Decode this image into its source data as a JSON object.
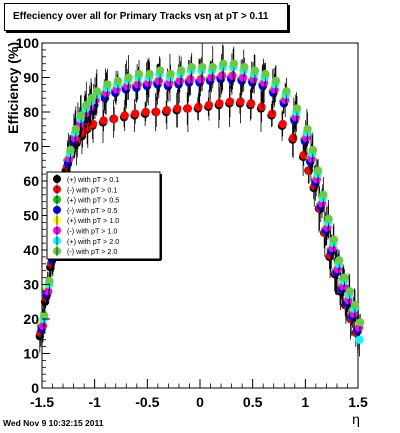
{
  "title": "Effeciency over all for Primary Tracks vsη at pT > 0.11",
  "footer": "Wed Nov  9 10:32:15 2011",
  "chart_data": {
    "type": "scatter",
    "xlabel": "η",
    "ylabel": "Efficiency (%)",
    "xlim": [
      -1.5,
      1.5
    ],
    "ylim": [
      0,
      100
    ],
    "x_ticks": [
      "-1.5",
      "-1",
      "-0.5",
      "0",
      "0.5",
      "1",
      "1.5"
    ],
    "y_ticks": [
      "0",
      "10",
      "20",
      "30",
      "40",
      "50",
      "60",
      "70",
      "80",
      "90",
      "100"
    ],
    "legend_position": "center-left",
    "grid": false,
    "x": [
      -1.5,
      -1.45,
      -1.4,
      -1.35,
      -1.3,
      -1.25,
      -1.2,
      -1.15,
      -1.1,
      -1.05,
      -1.0,
      -0.9,
      -0.8,
      -0.7,
      -0.6,
      -0.5,
      -0.4,
      -0.3,
      -0.2,
      -0.1,
      0.0,
      0.1,
      0.2,
      0.3,
      0.4,
      0.5,
      0.6,
      0.7,
      0.8,
      0.9,
      1.0,
      1.05,
      1.1,
      1.15,
      1.2,
      1.25,
      1.3,
      1.35,
      1.4,
      1.45,
      1.5
    ],
    "series": [
      {
        "name": "(+) with pT > 0.1",
        "color": "#000000",
        "values": [
          15,
          25,
          35,
          45,
          55,
          63,
          68,
          71,
          73,
          75,
          76,
          77,
          78,
          78.5,
          79,
          79.5,
          80,
          80,
          80.5,
          81,
          81,
          81.5,
          82,
          82.5,
          82.5,
          82,
          81,
          79,
          76,
          72,
          67,
          63,
          58,
          52,
          45,
          38,
          33,
          28,
          24,
          20,
          16
        ]
      },
      {
        "name": "(-) with pT > 0.1",
        "color": "#ff0000",
        "values": [
          16,
          26,
          36,
          46,
          56,
          64,
          69,
          72,
          74,
          75.5,
          76.5,
          77.5,
          78,
          79,
          79.5,
          80,
          80,
          80.5,
          81,
          81,
          81.5,
          82,
          82.5,
          83,
          83,
          82.5,
          81.5,
          79.5,
          76.5,
          72.5,
          67.5,
          63,
          58.5,
          52,
          45,
          38.5,
          33.5,
          28.5,
          24,
          20,
          16
        ]
      },
      {
        "name": "(+) with pT > 0.5",
        "color": "#00cc00",
        "values": [
          18,
          28,
          38,
          48,
          58,
          66,
          72,
          76,
          79,
          81,
          83,
          85,
          86,
          87,
          87.5,
          88,
          88.5,
          88,
          88.5,
          89,
          89,
          89.5,
          90,
          90,
          89.5,
          89,
          88,
          86,
          83,
          78,
          72,
          66,
          60,
          53,
          46,
          40,
          34,
          29,
          25,
          21,
          17
        ]
      },
      {
        "name": "(-) with pT > 0.5",
        "color": "#0000ff",
        "values": [
          17,
          27,
          37,
          47,
          57,
          65,
          71,
          75,
          78,
          80,
          82,
          84,
          85.5,
          86.5,
          87,
          87.5,
          88,
          87.5,
          88,
          88.5,
          88.5,
          89,
          89.5,
          89.5,
          89,
          88.5,
          87.5,
          85.5,
          82.5,
          77.5,
          71.5,
          65.5,
          59.5,
          52.5,
          45.5,
          39.5,
          33.5,
          28.5,
          24.5,
          20.5,
          16.5
        ]
      },
      {
        "name": "(+) with pT > 1.0",
        "color": "#ffff00",
        "values": [
          19,
          29,
          39,
          49,
          59,
          67,
          73,
          77,
          80,
          82,
          84,
          86,
          87,
          88,
          88.5,
          89,
          89.5,
          89,
          89.5,
          90,
          90,
          90.5,
          91,
          91,
          90.5,
          90,
          89,
          87,
          84,
          79,
          73,
          67,
          61,
          54,
          47,
          41,
          35,
          30,
          26,
          22,
          18
        ]
      },
      {
        "name": "(-) with pT > 1.0",
        "color": "#ff00ff",
        "values": [
          18,
          28,
          38,
          48,
          58,
          66.5,
          72.5,
          76.5,
          79.5,
          81.5,
          83.5,
          85.5,
          86.5,
          87.5,
          88,
          88.5,
          89,
          88.5,
          89,
          89.5,
          89.5,
          90,
          90.5,
          90.5,
          90,
          89.5,
          88.5,
          86.5,
          83.5,
          78.5,
          72.5,
          66.5,
          60.5,
          53.5,
          46.5,
          40.5,
          34.5,
          29.5,
          25.5,
          21.5,
          17.5
        ]
      },
      {
        "name": "(+) with pT > 2.0",
        "color": "#00ffff",
        "values": [
          20,
          30,
          40,
          50,
          60,
          68,
          74,
          78,
          81,
          83,
          85,
          87,
          88,
          89,
          90,
          90,
          91,
          90,
          91,
          92,
          92,
          92,
          93,
          93,
          92,
          91,
          90,
          88,
          85,
          80,
          74,
          68,
          62,
          55,
          48,
          42,
          36,
          31,
          27,
          23,
          14
        ]
      },
      {
        "name": "(-) with pT > 2.0",
        "color": "#66cc44",
        "values": [
          21,
          31,
          41,
          51,
          61,
          69,
          75,
          79,
          82,
          84,
          86,
          88,
          89,
          90,
          91,
          91,
          92,
          91,
          92,
          93,
          93,
          93,
          94,
          94,
          93,
          92,
          91,
          89,
          86,
          81,
          75,
          69,
          63,
          56,
          49,
          43,
          37,
          32,
          28,
          24,
          19
        ]
      }
    ]
  }
}
